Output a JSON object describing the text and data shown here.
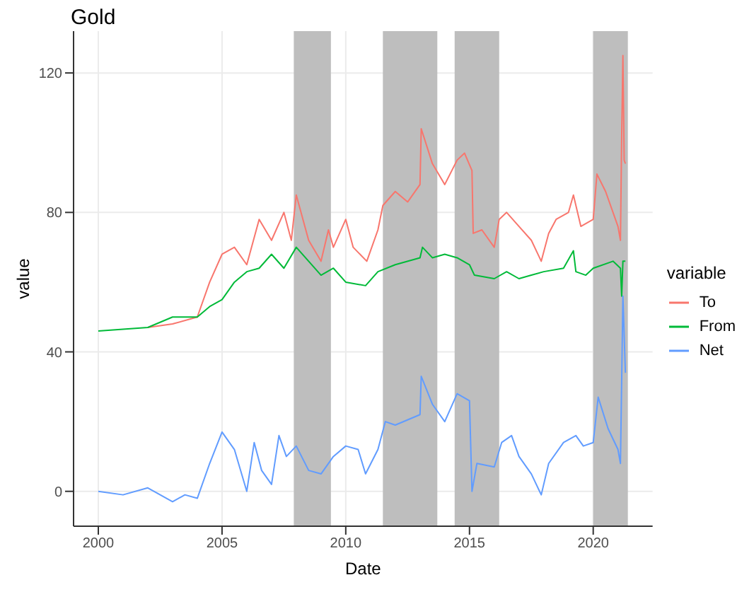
{
  "chart_data": {
    "type": "line",
    "title": "Gold",
    "xlabel": "Date",
    "ylabel": "value",
    "legend_title": "variable",
    "legend": "right",
    "grid": true,
    "line_style": "solid",
    "marker": "none",
    "xlim": [
      1999.0,
      2022.4
    ],
    "xticks": [
      2000,
      2005,
      2010,
      2015,
      2020
    ],
    "ylim": [
      -10,
      132
    ],
    "yticks": [
      0,
      40,
      80,
      120
    ],
    "bands": [
      {
        "axis": "x",
        "from": 2007.9,
        "to": 2009.4,
        "color": "#bebebe"
      },
      {
        "axis": "x",
        "from": 2011.5,
        "to": 2013.7,
        "color": "#bebebe"
      },
      {
        "axis": "x",
        "from": 2014.4,
        "to": 2016.2,
        "color": "#bebebe"
      },
      {
        "axis": "x",
        "from": 2020.0,
        "to": 2021.4,
        "color": "#bebebe"
      }
    ],
    "series": [
      {
        "name": "To",
        "color": "#f8766d",
        "x": [
          2002,
          2003,
          2004,
          2004.5,
          2005,
          2005.5,
          2006,
          2006.5,
          2007,
          2007.5,
          2007.8,
          2008.0,
          2008.5,
          2009,
          2009.3,
          2009.5,
          2010,
          2010.3,
          2010.85,
          2011.3,
          2011.5,
          2012,
          2012.5,
          2013,
          2013.05,
          2013.5,
          2014,
          2014.5,
          2014.8,
          2015.1,
          2015.15,
          2015.5,
          2016,
          2016.2,
          2016.5,
          2017,
          2017.5,
          2017.9,
          2018.2,
          2018.5,
          2019,
          2019.2,
          2019.5,
          2020,
          2020.15,
          2020.5,
          2021,
          2021.1,
          2021.15,
          2021.2,
          2021.25,
          2021.3
        ],
        "values": [
          47,
          48,
          50,
          60,
          68,
          70,
          65,
          78,
          72,
          80,
          72,
          85,
          72,
          66,
          75,
          70,
          78,
          70,
          66,
          75,
          82,
          86,
          83,
          88,
          104,
          94,
          88,
          95,
          97,
          92,
          74,
          75,
          70,
          78,
          80,
          76,
          72,
          66,
          74,
          78,
          80,
          85,
          76,
          78,
          91,
          86,
          76,
          72,
          102,
          125,
          95,
          94
        ]
      },
      {
        "name": "From",
        "color": "#00ba38",
        "x": [
          2000,
          2002,
          2003,
          2004,
          2004.5,
          2005,
          2005.5,
          2006,
          2006.5,
          2007,
          2007.5,
          2008,
          2008.5,
          2009,
          2009.5,
          2010,
          2010.8,
          2011.3,
          2012,
          2013,
          2013.1,
          2013.5,
          2014,
          2014.5,
          2015,
          2015.2,
          2016,
          2016.5,
          2017,
          2017.5,
          2018,
          2018.8,
          2019.2,
          2019.3,
          2019.7,
          2020,
          2020.8,
          2021.1,
          2021.15,
          2021.2,
          2021.3
        ],
        "values": [
          46,
          47,
          50,
          50,
          53,
          55,
          60,
          63,
          64,
          68,
          64,
          70,
          66,
          62,
          64,
          60,
          59,
          63,
          65,
          67,
          70,
          67,
          68,
          67,
          65,
          62,
          61,
          63,
          61,
          62,
          63,
          64,
          69,
          63,
          62,
          64,
          66,
          64,
          56,
          66,
          66
        ]
      },
      {
        "name": "Net",
        "color": "#619cff",
        "x": [
          2000,
          2001,
          2002,
          2003,
          2003.5,
          2004,
          2004.5,
          2005,
          2005.5,
          2006,
          2006.3,
          2006.6,
          2007,
          2007.3,
          2007.6,
          2008,
          2008.5,
          2009,
          2009.5,
          2010,
          2010.5,
          2010.8,
          2011.3,
          2011.6,
          2012,
          2013,
          2013.05,
          2013.5,
          2014,
          2014.5,
          2015,
          2015.1,
          2015.3,
          2016,
          2016.3,
          2016.7,
          2017,
          2017.5,
          2017.9,
          2018.2,
          2018.8,
          2019.3,
          2019.6,
          2020,
          2020.2,
          2020.6,
          2021,
          2021.1,
          2021.2,
          2021.3
        ],
        "values": [
          0,
          -1,
          1,
          -3,
          -1,
          -2,
          8,
          17,
          12,
          0,
          14,
          6,
          2,
          16,
          10,
          13,
          6,
          5,
          10,
          13,
          12,
          5,
          12,
          20,
          19,
          22,
          33,
          25,
          20,
          28,
          26,
          0,
          8,
          7,
          14,
          16,
          10,
          5,
          -1,
          8,
          14,
          16,
          13,
          14,
          27,
          18,
          12,
          8,
          56,
          34
        ]
      }
    ]
  }
}
